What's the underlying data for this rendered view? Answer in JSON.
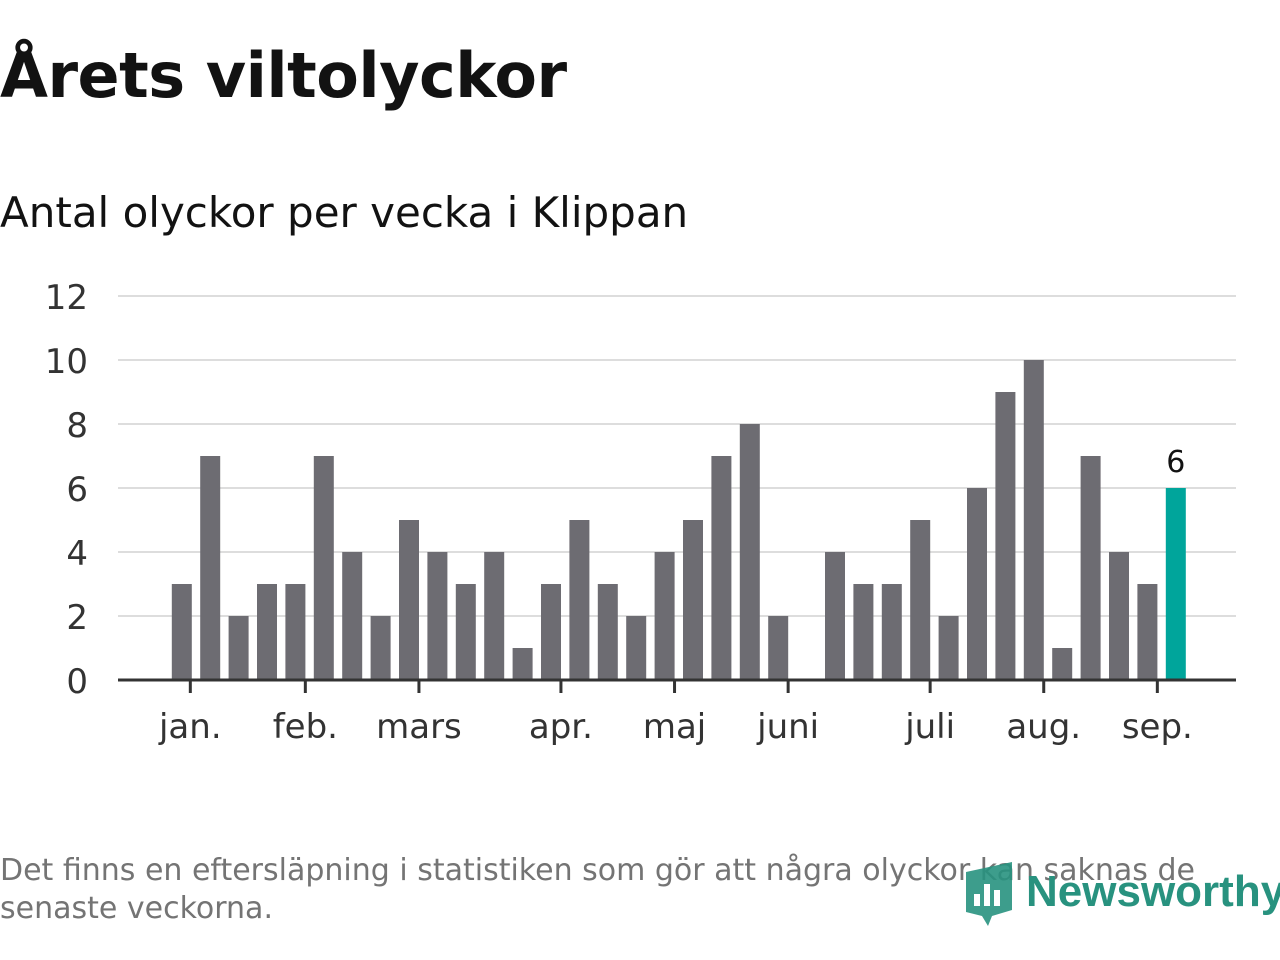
{
  "title": "Årets viltolyckor",
  "subtitle": "Antal olyckor per vecka i Klippan",
  "footnote": "Det finns en eftersläpning i statistiken som gör att några olyckor kan saknas de senaste veckorna.",
  "logo": {
    "text": "Newsworthy",
    "icon": "newsworthy-chart-icon"
  },
  "colors": {
    "bar": "#6d6c72",
    "highlight": "#00a59b",
    "grid": "#dddddd",
    "axis": "#333333",
    "logo": "#28927f"
  },
  "chart_data": {
    "type": "bar",
    "ylim": [
      0,
      12
    ],
    "yticks": [
      0,
      2,
      4,
      6,
      8,
      10,
      12
    ],
    "grid": true,
    "values": [
      null,
      null,
      3,
      7,
      2,
      3,
      3,
      7,
      4,
      2,
      5,
      4,
      3,
      4,
      1,
      3,
      5,
      3,
      2,
      4,
      5,
      7,
      8,
      2,
      0,
      4,
      3,
      3,
      5,
      2,
      6,
      9,
      10,
      1,
      7,
      4,
      3,
      6
    ],
    "highlight_last": true,
    "last_value_label": "6",
    "months": [
      {
        "label": "jan.",
        "week": 2.3
      },
      {
        "label": "feb.",
        "week": 6.35
      },
      {
        "label": "mars",
        "week": 10.35
      },
      {
        "label": "apr.",
        "week": 15.35
      },
      {
        "label": "maj",
        "week": 19.35
      },
      {
        "label": "juni",
        "week": 23.35
      },
      {
        "label": "juli",
        "week": 28.35
      },
      {
        "label": "aug.",
        "week": 32.35
      },
      {
        "label": "sep.",
        "week": 36.35
      }
    ]
  }
}
